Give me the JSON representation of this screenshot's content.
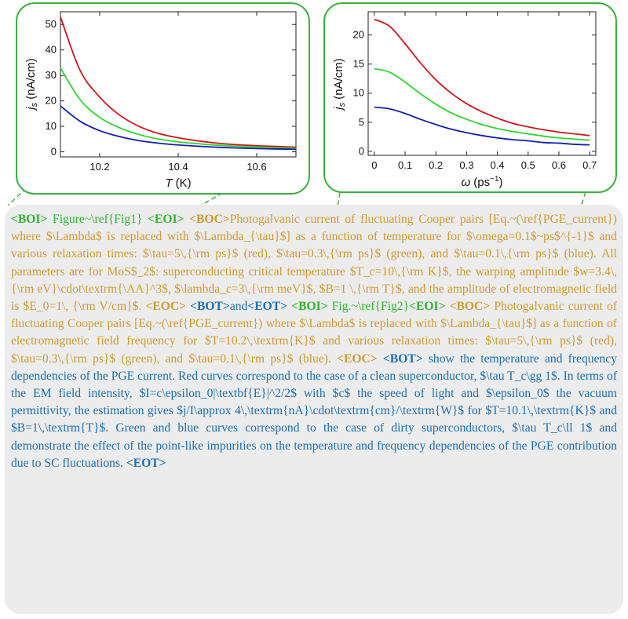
{
  "figures": [
    {
      "xlabel": "T (K)",
      "ylabel": "js (nA/cm)",
      "xticks": [
        "10.2",
        "10.4",
        "10.6"
      ],
      "yticks": [
        "0",
        "10",
        "20",
        "30",
        "40",
        "50"
      ]
    },
    {
      "xlabel": "ω (ps⁻¹)",
      "ylabel": "js (nA/cm)",
      "xticks": [
        "0",
        "0.1",
        "0.2",
        "0.3",
        "0.4",
        "0.5",
        "0.6",
        "0.7"
      ],
      "yticks": [
        "0",
        "5",
        "10",
        "15",
        "20"
      ]
    }
  ],
  "chart_data": [
    {
      "type": "line",
      "xlabel": "T (K)",
      "ylabel": "js (nA/cm)",
      "xlim": [
        10.1,
        10.7
      ],
      "ylim": [
        -2,
        55
      ],
      "colors": {
        "red": "#d0161e",
        "green": "#2fd42f",
        "blue": "#1420a8"
      },
      "series": [
        {
          "x": [
            10.1,
            10.15,
            10.2,
            10.25,
            10.3,
            10.35,
            10.4,
            10.45,
            10.5,
            10.55,
            10.6,
            10.65,
            10.7
          ],
          "values": [
            53,
            32,
            21.5,
            14.5,
            10,
            7.2,
            5.5,
            4.3,
            3.4,
            2.8,
            2.4,
            2.1,
            1.8
          ]
        },
        {
          "x": [
            10.1,
            10.15,
            10.2,
            10.25,
            10.3,
            10.35,
            10.4,
            10.45,
            10.5,
            10.55,
            10.6,
            10.65,
            10.7
          ],
          "values": [
            33,
            20.5,
            13.5,
            9.5,
            6.8,
            5.0,
            3.9,
            3.2,
            2.6,
            2.2,
            1.9,
            1.6,
            1.4
          ]
        },
        {
          "x": [
            10.1,
            10.15,
            10.2,
            10.25,
            10.3,
            10.35,
            10.4,
            10.45,
            10.5,
            10.55,
            10.6,
            10.65,
            10.7
          ],
          "values": [
            18,
            12,
            8.3,
            6.0,
            4.4,
            3.4,
            2.7,
            2.2,
            1.8,
            1.5,
            1.3,
            1.1,
            1.0
          ]
        }
      ]
    },
    {
      "type": "line",
      "xlabel": "ω (ps⁻¹)",
      "ylabel": "js (nA/cm)",
      "xlim": [
        -0.02,
        0.72
      ],
      "ylim": [
        -0.7,
        24
      ],
      "colors": {
        "red": "#d0161e",
        "green": "#2fd42f",
        "blue": "#1420a8"
      },
      "series": [
        {
          "x": [
            0,
            0.05,
            0.1,
            0.15,
            0.2,
            0.25,
            0.3,
            0.35,
            0.4,
            0.45,
            0.5,
            0.55,
            0.6,
            0.65,
            0.7
          ],
          "values": [
            22.7,
            21.5,
            18.5,
            15.2,
            12.3,
            10.0,
            8.2,
            6.8,
            5.7,
            4.8,
            4.2,
            3.7,
            3.3,
            3.0,
            2.7
          ]
        },
        {
          "x": [
            0,
            0.05,
            0.1,
            0.15,
            0.2,
            0.25,
            0.3,
            0.35,
            0.4,
            0.45,
            0.5,
            0.55,
            0.6,
            0.65,
            0.7
          ],
          "values": [
            14.2,
            13.6,
            11.9,
            9.9,
            8.1,
            6.6,
            5.5,
            4.6,
            3.9,
            3.4,
            3.0,
            2.6,
            2.3,
            2.1,
            1.9
          ]
        },
        {
          "x": [
            0,
            0.05,
            0.1,
            0.15,
            0.2,
            0.25,
            0.3,
            0.35,
            0.4,
            0.45,
            0.5,
            0.55,
            0.6,
            0.65,
            0.7
          ],
          "values": [
            7.6,
            7.3,
            6.5,
            5.5,
            4.6,
            3.8,
            3.2,
            2.7,
            2.3,
            2.0,
            1.8,
            1.5,
            1.4,
            1.2,
            1.1
          ]
        }
      ]
    }
  ],
  "caption": {
    "segments": [
      {
        "cls": "tag tg",
        "text": "<BOI>"
      },
      {
        "cls": "seg-g",
        "text": " Figure~\\ref{Fig1} "
      },
      {
        "cls": "tag tg",
        "text": "<EOI>"
      },
      {
        "cls": "seg-o",
        "text": " "
      },
      {
        "cls": "tag to",
        "text": "<BOC>"
      },
      {
        "cls": "seg-o",
        "text": "Photogalvanic current of fluctuating Cooper pairs [Eq.~(\\ref{PGE_current}) where $\\Lambda$ is replaced with $\\Lambda_{\\tau}$] as a function of temperature for $\\omega=0.1$~ps$^{-1}$ and various relaxation times: $\\tau=5\\,{\\rm ps}$ (red), $\\tau=0.3\\,{\\rm ps}$ (green), and $\\tau=0.1\\,{\\rm ps}$ (blue). All parameters are for MoS$_2$: superconducting critical temperature $T_c=10\\,{\\rm K}$, the warping amplitude $w=3.4\\,{\\rm eV}\\cdot\\textrm{\\AA}^3$, $\\lambda_c=3\\,{\\rm meV}$, $B=1 \\,{\\rm T}$, and the amplitude of electromagnetic field is $E_0=1\\, {\\rm V/cm}$. "
      },
      {
        "cls": "tag to",
        "text": "<EOC>"
      },
      {
        "cls": "seg-o",
        "text": " "
      },
      {
        "cls": "tag tb",
        "text": "<BOT>"
      },
      {
        "cls": "seg-b",
        "text": "and"
      },
      {
        "cls": "tag tb",
        "text": "<EOT>"
      },
      {
        "cls": "seg-o",
        "text": " "
      },
      {
        "cls": "tag tg",
        "text": "<BOI>"
      },
      {
        "cls": "seg-g",
        "text": " Fig.~\\ref{Fig2}"
      },
      {
        "cls": "tag tg",
        "text": "<EOI>"
      },
      {
        "cls": "seg-o",
        "text": " "
      },
      {
        "cls": "tag to",
        "text": "<BOC>"
      },
      {
        "cls": "seg-o",
        "text": " Photogalvanic current of fluctuating Cooper pairs [Eq.~(\\ref{PGE_current}) where $\\Lambda$ is replaced with $\\Lambda_{\\tau}$] as a function of electromagnetic field frequency for $T=10.2\\,\\textrm{K}$ and various relaxation times: $\\tau=5\\,{\\rm ps}$ (red), $\\tau=0.3\\,{\\rm ps}$ (green), and $\\tau=0.1\\,{\\rm ps}$ (blue). "
      },
      {
        "cls": "tag to",
        "text": "<EOC>"
      },
      {
        "cls": "seg-o",
        "text": " "
      },
      {
        "cls": "tag tb",
        "text": "<BOT>"
      },
      {
        "cls": "seg-b",
        "text": " show the temperature and frequency dependencies of the PGE current.  Red curves correspond to the case of a clean superconductor, $\\tau T_c\\gg 1$.  In terms of the EM field intensity, $I=c\\epsilon_0|\\textbf{E}|^2/2$ with $c$ the speed of light and $\\epsilon_0$ the vacuum permittivity, the estimation gives $j/I\\approx 4\\,\\textrm{nA}\\cdot\\textrm{cm}/\\textrm{W}$ for $T=10.1\\,\\textrm{K}$ and $B=1\\,\\textrm{T}$. Green and blue curves correspond to the case of dirty superconductors, $\\tau T_c\\ll 1$ and demonstrate the effect of the point-like impurities on the temperature and frequency dependencies of the PGE contribution due to SC fluctuations. "
      },
      {
        "cls": "tag tb",
        "text": "<EOT>"
      }
    ]
  }
}
